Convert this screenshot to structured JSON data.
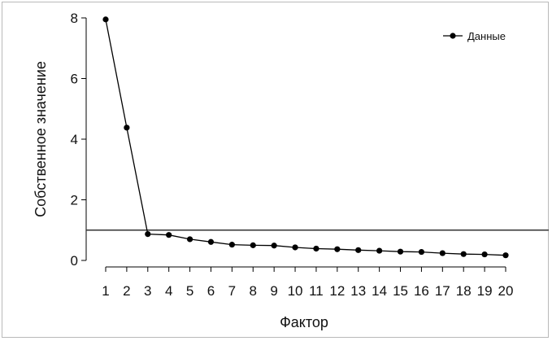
{
  "chart_data": {
    "type": "line",
    "xlabel": "Фактор",
    "ylabel": "Собственное значение",
    "x": [
      1,
      2,
      3,
      4,
      5,
      6,
      7,
      8,
      9,
      10,
      11,
      12,
      13,
      14,
      15,
      16,
      17,
      18,
      19,
      20
    ],
    "x_tick_labels": [
      "1",
      "2",
      "3",
      "4",
      "5",
      "6",
      "7",
      "8",
      "9",
      "10",
      "11",
      "12",
      "13",
      "14",
      "15",
      "16",
      "17",
      "18",
      "19",
      "20"
    ],
    "y_tick_labels": [
      "0",
      "2",
      "4",
      "6",
      "8"
    ],
    "y_ticks": [
      0,
      2,
      4,
      6,
      8
    ],
    "ylim": [
      0,
      8
    ],
    "xlim": [
      1,
      20
    ],
    "series": [
      {
        "name": "Данные",
        "values": [
          7.95,
          4.38,
          0.87,
          0.84,
          0.7,
          0.61,
          0.52,
          0.5,
          0.49,
          0.43,
          0.39,
          0.37,
          0.34,
          0.32,
          0.29,
          0.28,
          0.24,
          0.21,
          0.2,
          0.17
        ]
      }
    ],
    "reference_line": {
      "y": 1
    },
    "legend": {
      "position": "top-right",
      "entries": [
        "Данные"
      ]
    },
    "grid": false
  },
  "colors": {
    "line": "#000000",
    "marker": "#000000",
    "reference": "#333333"
  }
}
